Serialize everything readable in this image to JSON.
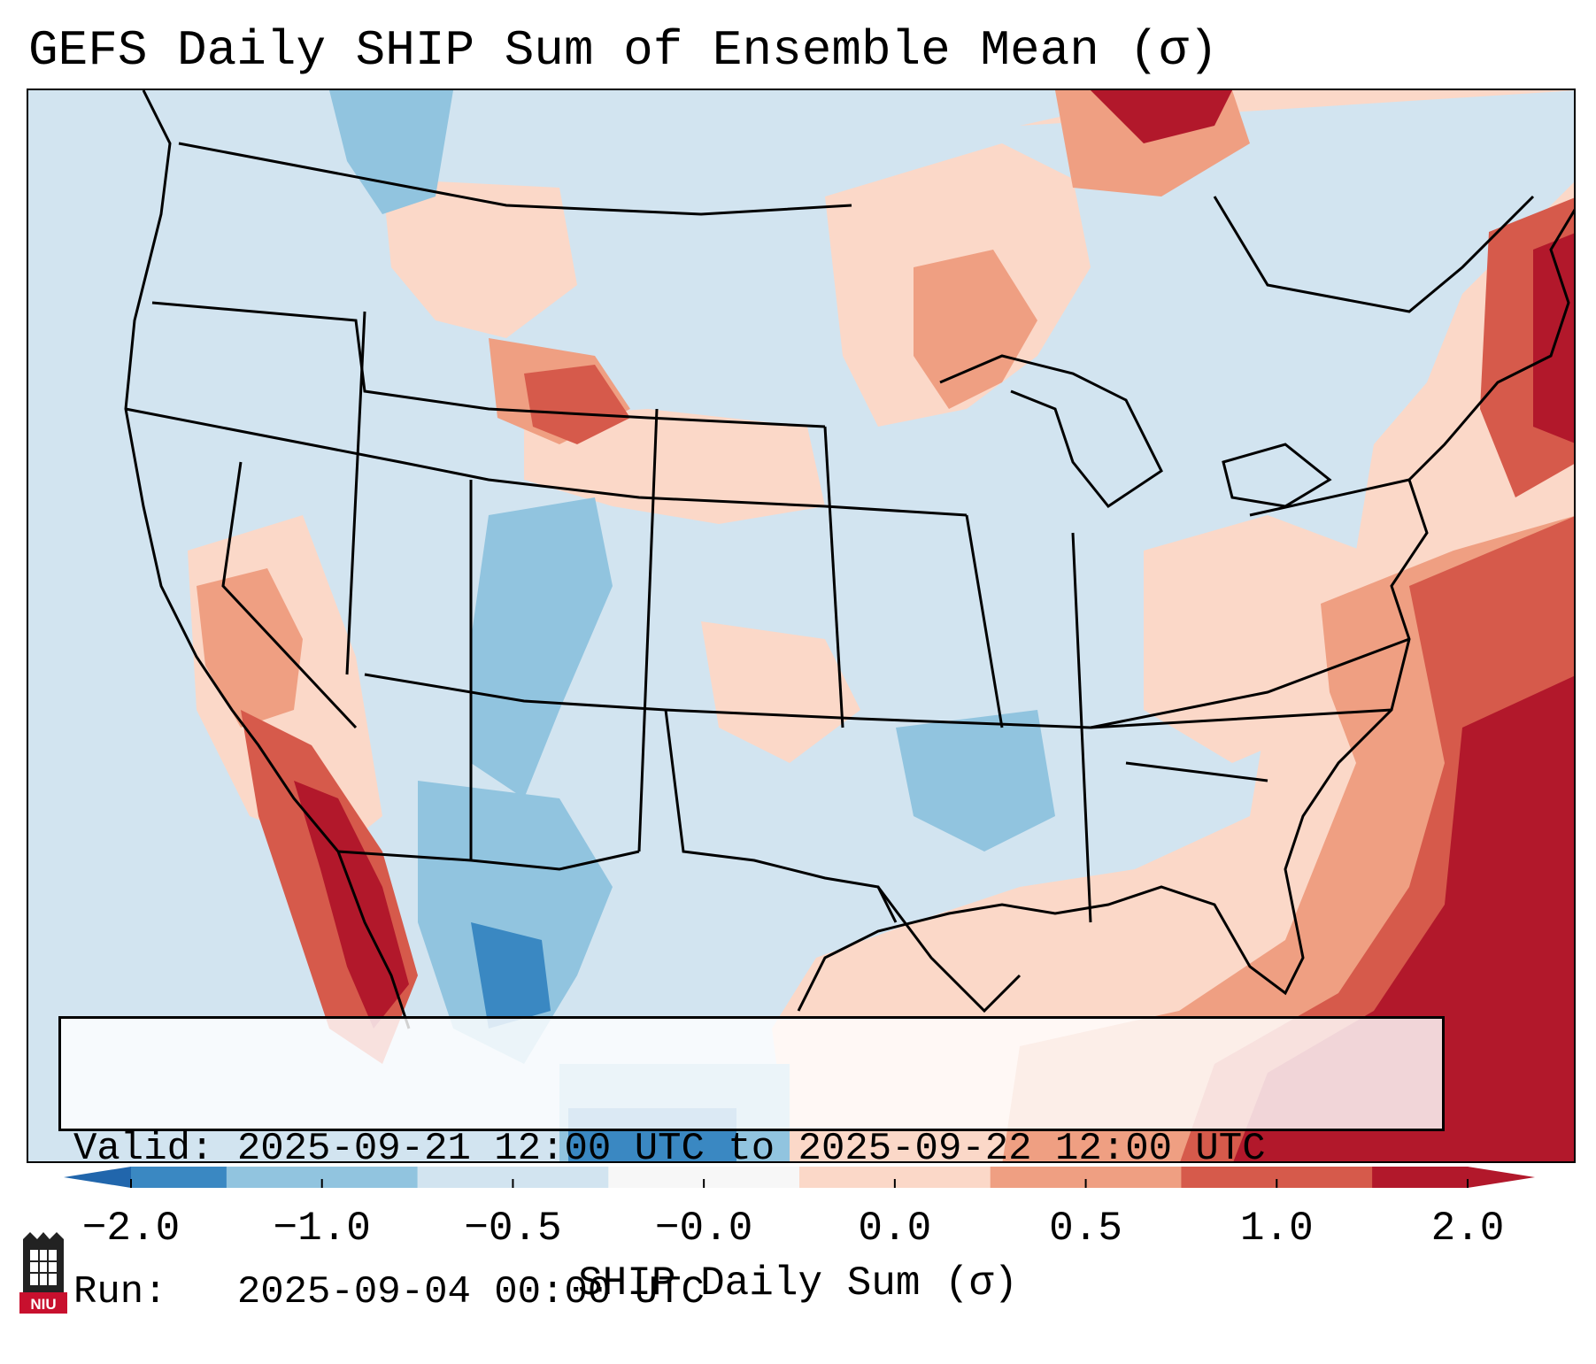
{
  "title": "GEFS Daily SHIP Sum of Ensemble Mean (σ)",
  "valid_text": "Valid: 2025-09-21 12:00 UTC to 2025-09-22 12:00 UTC",
  "run_text": "Run:   2025-09-04 00:00 UTC",
  "colorbar": {
    "label": "SHIP Daily Sum (σ)",
    "ticks": [
      "−2.0",
      "−1.0",
      "−0.5",
      "−0.0",
      "0.0",
      "0.5",
      "1.0",
      "2.0"
    ],
    "bins": [
      {
        "color": "#3a88c2"
      },
      {
        "color": "#91c4df"
      },
      {
        "color": "#d2e4f0"
      },
      {
        "color": "#f7f7f7"
      },
      {
        "color": "#fbd8c8"
      },
      {
        "color": "#ef9f82"
      },
      {
        "color": "#d65a4b"
      },
      {
        "color": "#b2182b"
      }
    ],
    "extend_low_color": "#2166ac",
    "extend_high_color": "#b2182b"
  },
  "map": {
    "region": "Contiguous United States",
    "background_color": "#d2e4f0",
    "boundary_color": "#000000"
  },
  "logo": {
    "text": "NIU",
    "color": "#c8102e"
  }
}
